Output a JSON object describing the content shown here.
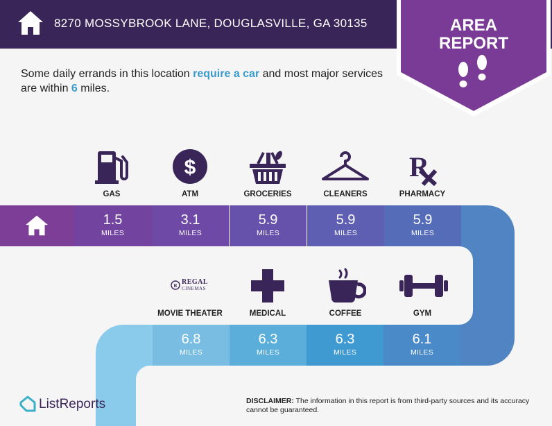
{
  "header": {
    "address": "8270 MOSSYBROOK LANE, DOUGLASVILLE, GA 30135"
  },
  "badge": {
    "line1": "AREA",
    "line2": "REPORT"
  },
  "intro": {
    "part1": "Some daily errands in this location ",
    "highlight1": "require a car",
    "part2": " and most major services are within ",
    "highlight2": "6",
    "part3": " miles."
  },
  "row1": [
    {
      "label": "GAS",
      "value": "1.5",
      "unit": "MILES",
      "icon": "gas-pump-icon"
    },
    {
      "label": "ATM",
      "value": "3.1",
      "unit": "MILES",
      "icon": "dollar-icon"
    },
    {
      "label": "GROCERIES",
      "value": "5.9",
      "unit": "MILES",
      "icon": "grocery-basket-icon"
    },
    {
      "label": "CLEANERS",
      "value": "5.9",
      "unit": "MILES",
      "icon": "hanger-icon"
    },
    {
      "label": "PHARMACY",
      "value": "5.9",
      "unit": "MILES",
      "icon": "rx-icon"
    }
  ],
  "row2": [
    {
      "label": "MOVIE THEATER",
      "value": "6.8",
      "unit": "MILES",
      "icon": "regal-cinemas-logo"
    },
    {
      "label": "MEDICAL",
      "value": "6.3",
      "unit": "MILES",
      "icon": "medical-cross-icon"
    },
    {
      "label": "COFFEE",
      "value": "6.3",
      "unit": "MILES",
      "icon": "coffee-cup-icon"
    },
    {
      "label": "GYM",
      "value": "6.1",
      "unit": "MILES",
      "icon": "dumbbell-icon"
    }
  ],
  "logo": {
    "regal1": "REGAL",
    "regal2": "CINEMAS"
  },
  "footer": {
    "brand": "ListReports",
    "disclaimer_label": "DISCLAIMER:",
    "disclaimer_text": " The information in this report is from third-party sources and its accuracy cannot be guaranteed."
  },
  "colors": {
    "header": "#3a2559",
    "accent": "#3a9bcb",
    "badge": "#7a3b96",
    "icon": "#3a2559"
  }
}
